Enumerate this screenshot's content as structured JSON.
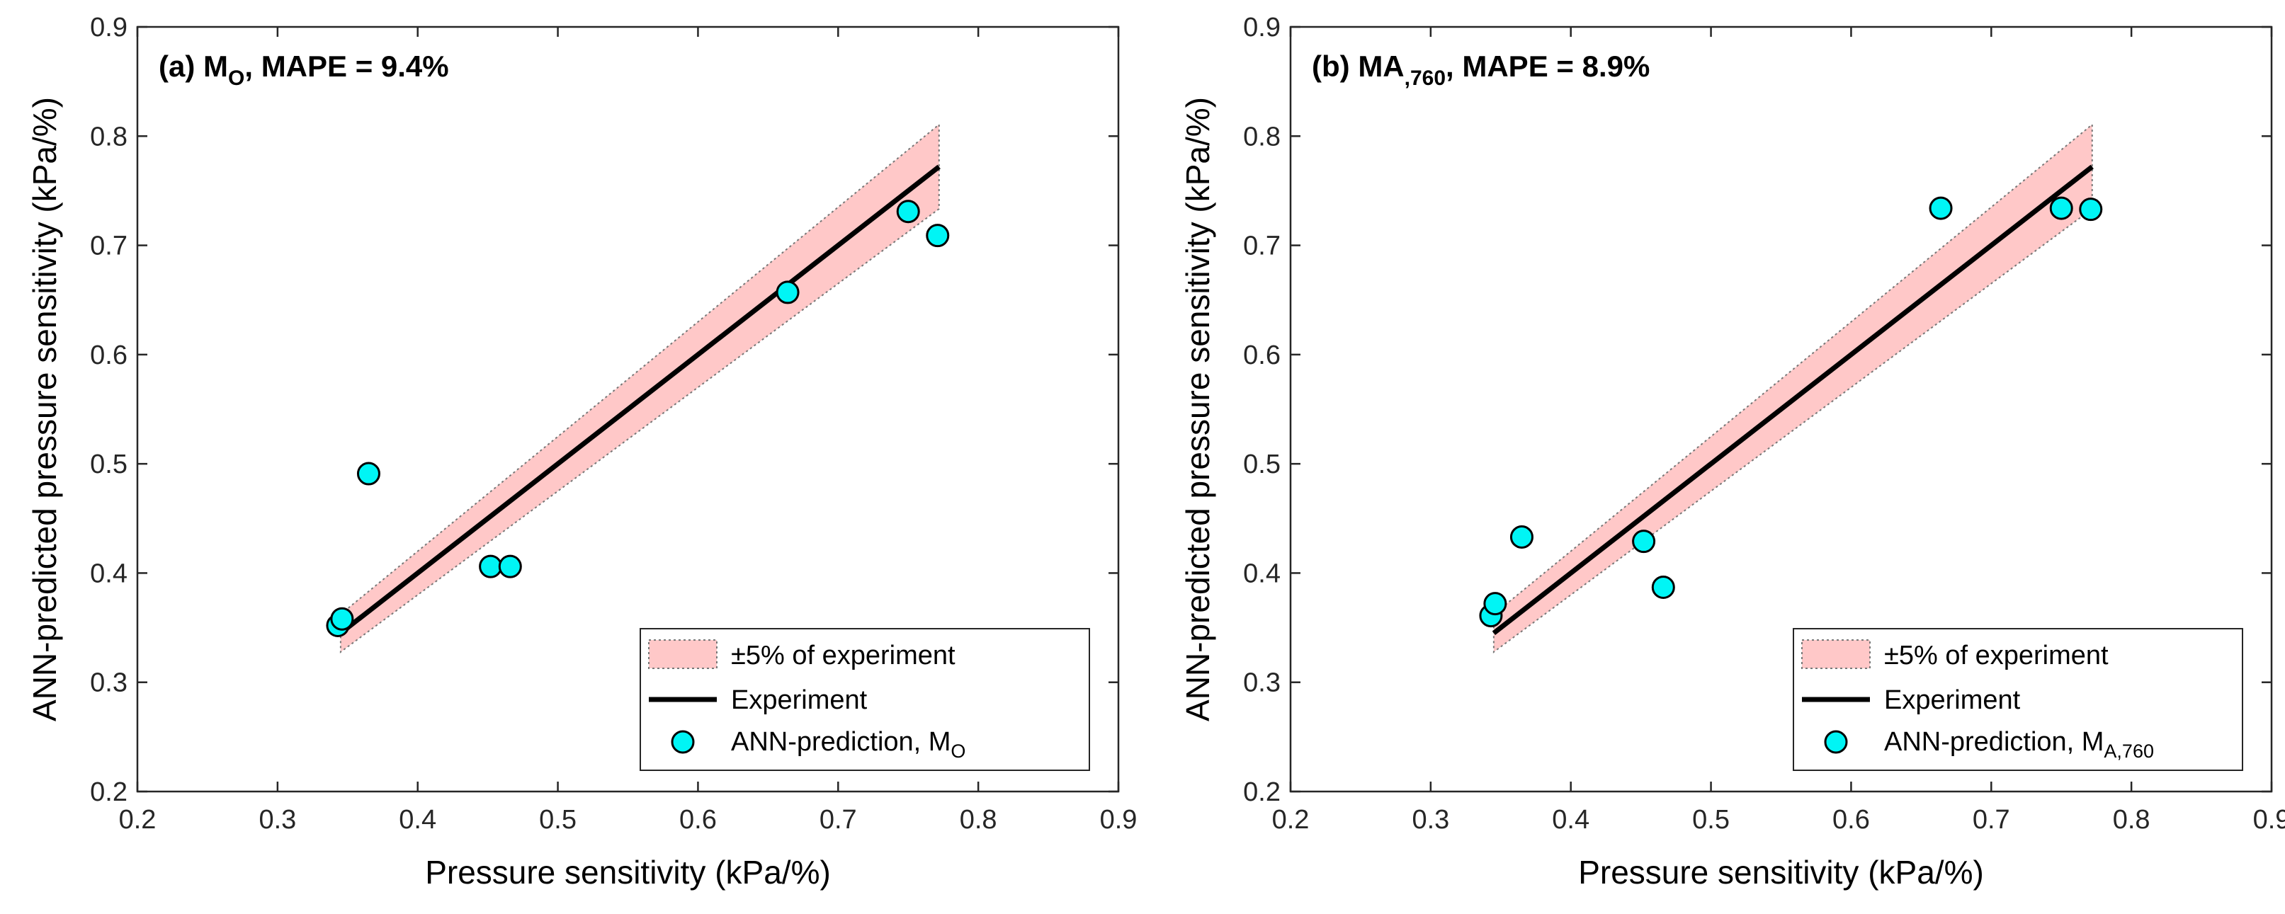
{
  "chart_data": [
    {
      "type": "scatter",
      "panel_label": "(a)",
      "title_var": "M",
      "title_sub": "O",
      "title_rest": ", MAPE = 9.4%",
      "xlabel": "Pressure sensitivity (kPa/%)",
      "ylabel": "ANN-predicted pressure sensitivity (kPa/%)",
      "xlim": [
        0.2,
        0.9
      ],
      "ylim": [
        0.2,
        0.9
      ],
      "xticks": [
        "0.2",
        "0.3",
        "0.4",
        "0.5",
        "0.6",
        "0.7",
        "0.8",
        "0.9"
      ],
      "yticks": [
        "0.2",
        "0.3",
        "0.4",
        "0.5",
        "0.6",
        "0.7",
        "0.8",
        "0.9"
      ],
      "experiment_range": [
        0.345,
        0.772
      ],
      "band_percent": 5,
      "points": [
        {
          "x": 0.343,
          "y": 0.352
        },
        {
          "x": 0.346,
          "y": 0.358
        },
        {
          "x": 0.365,
          "y": 0.491
        },
        {
          "x": 0.452,
          "y": 0.406
        },
        {
          "x": 0.466,
          "y": 0.406
        },
        {
          "x": 0.664,
          "y": 0.657
        },
        {
          "x": 0.75,
          "y": 0.731
        },
        {
          "x": 0.771,
          "y": 0.709
        }
      ],
      "legend": {
        "band": "±5% of experiment",
        "line": "Experiment",
        "points_main": "ANN-prediction, M",
        "points_sub": "O"
      }
    },
    {
      "type": "scatter",
      "panel_label": "(b)",
      "title_var": "MA",
      "title_sub": ",760",
      "title_rest": ", MAPE = 8.9%",
      "xlabel": "Pressure sensitivity (kPa/%)",
      "ylabel": "ANN-predicted pressure sensitivity (kPa/%)",
      "xlim": [
        0.2,
        0.9
      ],
      "ylim": [
        0.2,
        0.9
      ],
      "xticks": [
        "0.2",
        "0.3",
        "0.4",
        "0.5",
        "0.6",
        "0.7",
        "0.8",
        "0.9"
      ],
      "yticks": [
        "0.2",
        "0.3",
        "0.4",
        "0.5",
        "0.6",
        "0.7",
        "0.8",
        "0.9"
      ],
      "experiment_range": [
        0.345,
        0.772
      ],
      "band_percent": 5,
      "points": [
        {
          "x": 0.343,
          "y": 0.361
        },
        {
          "x": 0.346,
          "y": 0.372
        },
        {
          "x": 0.365,
          "y": 0.433
        },
        {
          "x": 0.452,
          "y": 0.429
        },
        {
          "x": 0.466,
          "y": 0.387
        },
        {
          "x": 0.664,
          "y": 0.734
        },
        {
          "x": 0.75,
          "y": 0.734
        },
        {
          "x": 0.771,
          "y": 0.733
        }
      ],
      "legend": {
        "band": "±5% of experiment",
        "line": "Experiment",
        "points_main": "ANN-prediction, M",
        "points_sub": "A,760"
      }
    }
  ],
  "colors": {
    "band": "#ffc8c8",
    "band_edge": "#777777",
    "line": "#000000",
    "point_fill": "#00f5f5",
    "point_edge": "#000000"
  }
}
